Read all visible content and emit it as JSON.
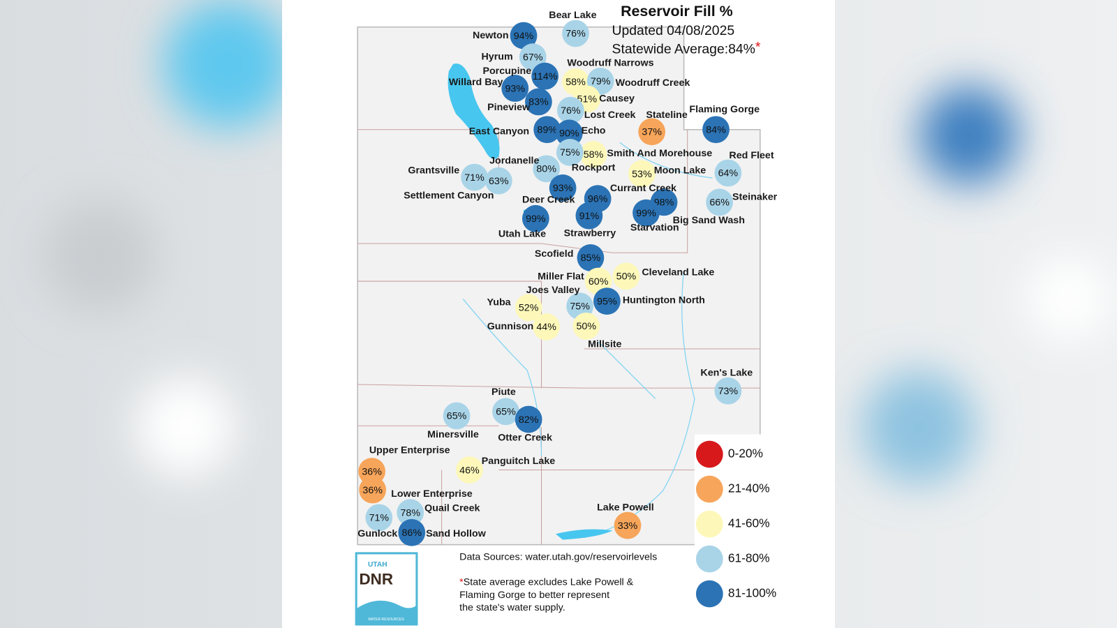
{
  "header": {
    "title": "Reservoir Fill %",
    "updated": "Updated 04/08/2025",
    "statewide": {
      "text": "Statewide Average:84%",
      "mark": "*"
    }
  },
  "reservoirs": [
    {
      "name": "Newton",
      "label": "94%",
      "color": "#2b73b5"
    },
    {
      "name": "Bear Lake",
      "label": "76%",
      "color": "#a9d4e8"
    },
    {
      "name": "Hyrum",
      "label": "67%",
      "color": "#a9d4e8"
    },
    {
      "name": "Porcupine",
      "label": "114%",
      "color": "#2b73b5"
    },
    {
      "name": "Woodruff Narrows",
      "label": "58%",
      "color": "#fdf8b9"
    },
    {
      "name": "Woodruff Creek",
      "label": "79%",
      "color": "#a9d4e8"
    },
    {
      "name": "Willard Bay",
      "label": "93%",
      "color": "#2b73b5"
    },
    {
      "name": "Causey",
      "label": "51%",
      "color": "#fdf8b9"
    },
    {
      "name": "Pineview",
      "label": "83%",
      "color": "#2b73b5"
    },
    {
      "name": "Lost Creek",
      "label": "76%",
      "color": "#a9d4e8"
    },
    {
      "name": "Stateline",
      "label": "37%",
      "color": "#f7a55a"
    },
    {
      "name": "Flaming Gorge",
      "label": "84%",
      "color": "#2b73b5"
    },
    {
      "name": "East Canyon",
      "label": "89%",
      "color": "#2b73b5"
    },
    {
      "name": "Echo",
      "label": "90%",
      "color": "#2b73b5"
    },
    {
      "name": "Smith And Morehouse",
      "label": "58%",
      "color": "#fdf8b9"
    },
    {
      "name": "Red Fleet",
      "label": "64%",
      "color": "#a9d4e8"
    },
    {
      "name": "Jordanelle",
      "label": "75%",
      "color": "#a9d4e8"
    },
    {
      "name": "Rockport",
      "label": "80%",
      "color": "#a9d4e8"
    },
    {
      "name": "Grantsville",
      "label": "71%",
      "color": "#a9d4e8"
    },
    {
      "name": "Settlement Canyon",
      "label": "63%",
      "color": "#a9d4e8"
    },
    {
      "name": "Moon Lake",
      "label": "53%",
      "color": "#fdf8b9"
    },
    {
      "name": "Deer Creek",
      "label": "93%",
      "color": "#2b73b5"
    },
    {
      "name": "Currant Creek",
      "label": "96%",
      "color": "#2b73b5"
    },
    {
      "name": "Steinaker",
      "label": "66%",
      "color": "#a9d4e8"
    },
    {
      "name": "Big Sand Wash",
      "label": "98%",
      "color": "#2b73b5"
    },
    {
      "name": "Starvation",
      "label": "99%",
      "color": "#2b73b5"
    },
    {
      "name": "Utah Lake",
      "label": "99%",
      "color": "#2b73b5"
    },
    {
      "name": "Strawberry",
      "label": "91%",
      "color": "#2b73b5"
    },
    {
      "name": "Scofield",
      "label": "85%",
      "color": "#2b73b5"
    },
    {
      "name": "Cleveland Lake",
      "label": "50%",
      "color": "#fdf8b9"
    },
    {
      "name": "Miller Flat",
      "label": "60%",
      "color": "#fdf8b9"
    },
    {
      "name": "Joes Valley",
      "label": "75%",
      "color": "#a9d4e8"
    },
    {
      "name": "Huntington North",
      "label": "95%",
      "color": "#2b73b5"
    },
    {
      "name": "Yuba",
      "label": "52%",
      "color": "#fdf8b9"
    },
    {
      "name": "Gunnison",
      "label": "44%",
      "color": "#fdf8b9"
    },
    {
      "name": "Millsite",
      "label": "50%",
      "color": "#fdf8b9"
    },
    {
      "name": "Ken's Lake",
      "label": "73%",
      "color": "#a9d4e8"
    },
    {
      "name": "Piute",
      "label": "65%",
      "color": "#a9d4e8"
    },
    {
      "name": "Minersville",
      "label": "65%",
      "color": "#a9d4e8"
    },
    {
      "name": "Otter Creek",
      "label": "82%",
      "color": "#2b73b5"
    },
    {
      "name": "Upper Enterprise",
      "label": "36%",
      "color": "#f7a55a"
    },
    {
      "name": "Panguitch Lake",
      "label": "46%",
      "color": "#fdf8b9"
    },
    {
      "name": "Lower Enterprise",
      "label": "36%",
      "color": "#f7a55a"
    },
    {
      "name": "Quail Creek",
      "label": "78%",
      "color": "#a9d4e8"
    },
    {
      "name": "Gunlock",
      "label": "71%",
      "color": "#a9d4e8"
    },
    {
      "name": "Sand Hollow",
      "label": "86%",
      "color": "#2b73b5"
    },
    {
      "name": "Lake Powell",
      "label": "33%",
      "color": "#f7a55a"
    }
  ],
  "legend": [
    {
      "label": "0-20%",
      "color": "#d7191c"
    },
    {
      "label": "21-40%",
      "color": "#f7a55a"
    },
    {
      "label": "41-60%",
      "color": "#fdf8b9"
    },
    {
      "label": "61-80%",
      "color": "#a9d4e8"
    },
    {
      "label": "81-100%",
      "color": "#2b73b5"
    }
  ],
  "sources": "Data Sources: water.utah.gov/reservoirlevels",
  "footnote": {
    "mark": "*",
    "lines": [
      "State average excludes Lake Powell &",
      "Flaming Gorge to better represent",
      "the state's water supply."
    ]
  },
  "logo": {
    "top": "UTAH",
    "main": "DNR",
    "bottom": "WATER RESOURCES"
  }
}
